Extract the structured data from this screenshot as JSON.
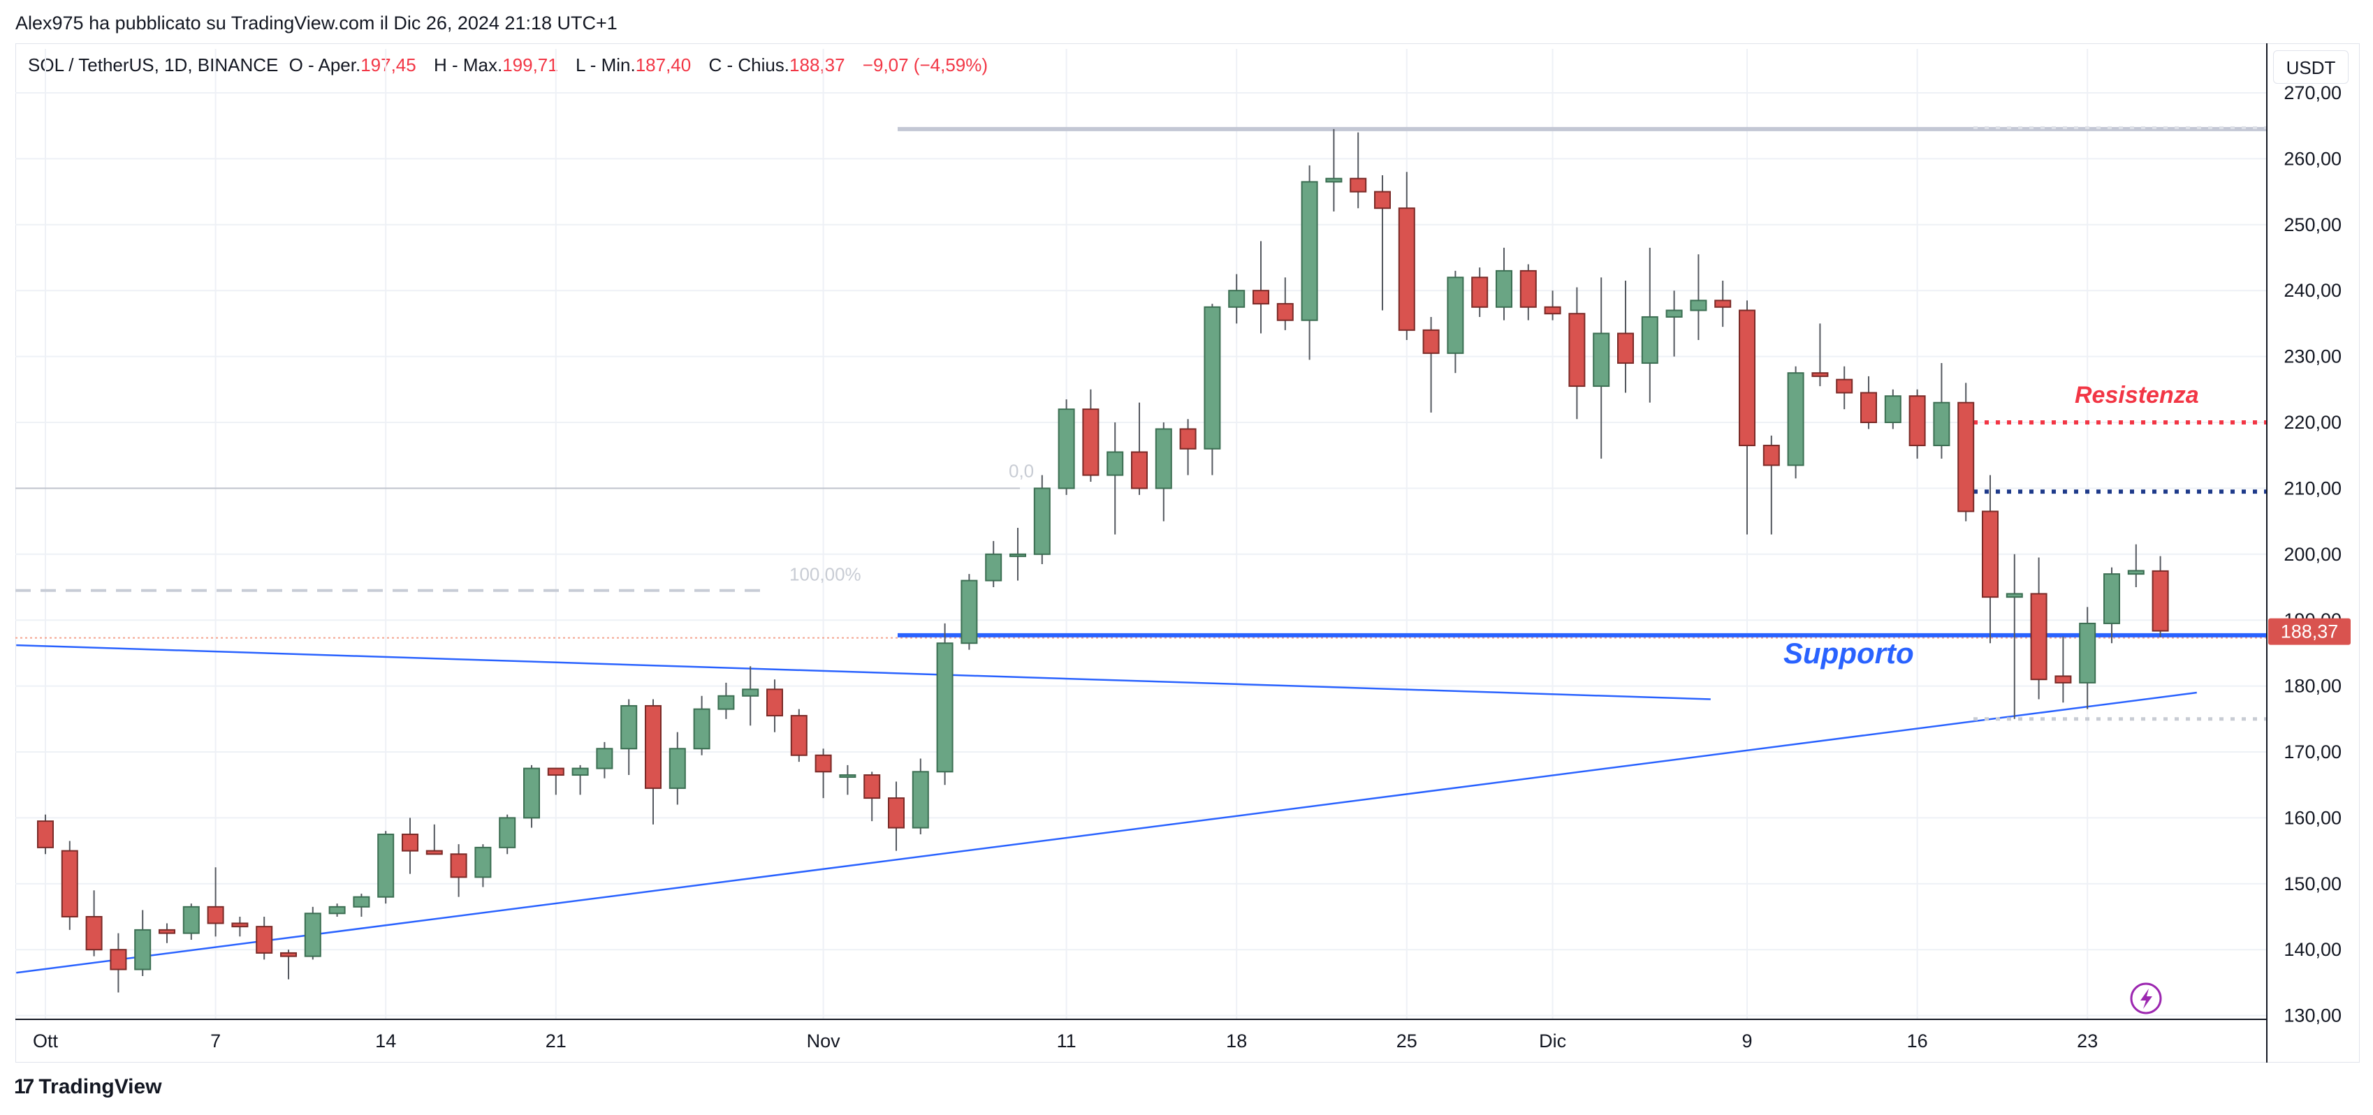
{
  "header": {
    "published_by": "Alex975 ha pubblicato su TradingView.com il Dic 26, 2024 21:18 UTC+1"
  },
  "legend": {
    "symbol": "SOL / TetherUS, 1D, BINANCE",
    "open_label": "O - Aper.",
    "open_value": "197,45",
    "high_label": "H - Max.",
    "high_value": "199,71",
    "low_label": "L - Min.",
    "low_value": "187,40",
    "close_label": "C - Chius.",
    "close_value": "188,37",
    "change": "−9,07 (−4,59%)"
  },
  "currency": "USDT",
  "last_price_label": "188,37",
  "brand": {
    "name": "TradingView",
    "mark": "17"
  },
  "colors": {
    "up": "#6aa584",
    "down": "#d9534f",
    "support": "#2962ff",
    "resistance": "#f23645",
    "blue_dotted": "#1e3a8a",
    "price_tag": "#d9534f"
  },
  "annotations": {
    "resistance_label": "Resistenza",
    "support_label": "Supporto",
    "fib_100": "100,00%",
    "fib_0": "0,0"
  },
  "chart_data": {
    "type": "candlestick",
    "title": "",
    "y_axis": {
      "range": [
        130,
        270
      ],
      "ticks": [
        "270,00",
        "260,00",
        "250,00",
        "240,00",
        "230,00",
        "220,00",
        "210,00",
        "200,00",
        "190,00",
        "180,00",
        "170,00",
        "160,00",
        "150,00",
        "140,00",
        "130,00"
      ]
    },
    "x_axis": {
      "start_date": "2024-09-30",
      "tick_labels": [
        {
          "label": "Ott",
          "day": 0
        },
        {
          "label": "7",
          "day": 7
        },
        {
          "label": "14",
          "day": 14
        },
        {
          "label": "21",
          "day": 21
        },
        {
          "label": "Nov",
          "day": 32
        },
        {
          "label": "11",
          "day": 42
        },
        {
          "label": "18",
          "day": 49
        },
        {
          "label": "25",
          "day": 56
        },
        {
          "label": "Dic",
          "day": 62
        },
        {
          "label": "9",
          "day": 70
        },
        {
          "label": "16",
          "day": 77
        },
        {
          "label": "23",
          "day": 84
        }
      ]
    },
    "candles": [
      {
        "o": 159.5,
        "h": 160.5,
        "l": 154.5,
        "c": 155.5
      },
      {
        "o": 155.0,
        "h": 156.5,
        "l": 143.0,
        "c": 145.0
      },
      {
        "o": 145.0,
        "h": 149.0,
        "l": 139.0,
        "c": 140.0
      },
      {
        "o": 140.0,
        "h": 142.5,
        "l": 133.5,
        "c": 137.0
      },
      {
        "o": 137.0,
        "h": 146.0,
        "l": 136.0,
        "c": 143.0
      },
      {
        "o": 143.0,
        "h": 144.0,
        "l": 141.0,
        "c": 142.5
      },
      {
        "o": 142.5,
        "h": 147.0,
        "l": 141.5,
        "c": 146.5
      },
      {
        "o": 146.5,
        "h": 152.5,
        "l": 142.0,
        "c": 144.0
      },
      {
        "o": 144.0,
        "h": 145.0,
        "l": 142.0,
        "c": 143.5
      },
      {
        "o": 143.5,
        "h": 145.0,
        "l": 138.5,
        "c": 139.5
      },
      {
        "o": 139.5,
        "h": 140.0,
        "l": 135.5,
        "c": 139.0
      },
      {
        "o": 139.0,
        "h": 146.5,
        "l": 138.5,
        "c": 145.5
      },
      {
        "o": 145.5,
        "h": 147.0,
        "l": 145.0,
        "c": 146.5
      },
      {
        "o": 146.5,
        "h": 148.5,
        "l": 145.0,
        "c": 148.0
      },
      {
        "o": 148.0,
        "h": 158.0,
        "l": 147.0,
        "c": 157.5
      },
      {
        "o": 157.5,
        "h": 160.0,
        "l": 151.5,
        "c": 155.0
      },
      {
        "o": 155.0,
        "h": 159.0,
        "l": 154.5,
        "c": 154.5
      },
      {
        "o": 154.5,
        "h": 156.0,
        "l": 148.0,
        "c": 151.0
      },
      {
        "o": 151.0,
        "h": 156.0,
        "l": 149.5,
        "c": 155.5
      },
      {
        "o": 155.5,
        "h": 160.5,
        "l": 154.5,
        "c": 160.0
      },
      {
        "o": 160.0,
        "h": 168.0,
        "l": 158.5,
        "c": 167.5
      },
      {
        "o": 167.5,
        "h": 167.5,
        "l": 163.5,
        "c": 166.5
      },
      {
        "o": 166.5,
        "h": 168.0,
        "l": 163.5,
        "c": 167.5
      },
      {
        "o": 167.5,
        "h": 171.5,
        "l": 166.0,
        "c": 170.5
      },
      {
        "o": 170.5,
        "h": 178.0,
        "l": 166.5,
        "c": 177.0
      },
      {
        "o": 177.0,
        "h": 178.0,
        "l": 159.0,
        "c": 164.5
      },
      {
        "o": 164.5,
        "h": 173.0,
        "l": 162.0,
        "c": 170.5
      },
      {
        "o": 170.5,
        "h": 178.5,
        "l": 169.5,
        "c": 176.5
      },
      {
        "o": 176.5,
        "h": 180.5,
        "l": 175.0,
        "c": 178.5
      },
      {
        "o": 178.5,
        "h": 183.0,
        "l": 174.0,
        "c": 179.5
      },
      {
        "o": 179.5,
        "h": 181.0,
        "l": 173.0,
        "c": 175.5
      },
      {
        "o": 175.5,
        "h": 176.5,
        "l": 168.5,
        "c": 169.5
      },
      {
        "o": 169.5,
        "h": 170.5,
        "l": 163.0,
        "c": 167.0
      },
      {
        "o": 166.5,
        "h": 168.0,
        "l": 163.5,
        "c": 166.5
      },
      {
        "o": 166.5,
        "h": 167.0,
        "l": 159.5,
        "c": 163.0
      },
      {
        "o": 163.0,
        "h": 165.5,
        "l": 155.0,
        "c": 158.5
      },
      {
        "o": 158.5,
        "h": 169.0,
        "l": 157.5,
        "c": 167.0
      },
      {
        "o": 167.0,
        "h": 189.5,
        "l": 165.0,
        "c": 186.5
      },
      {
        "o": 186.5,
        "h": 197.0,
        "l": 185.5,
        "c": 196.0
      },
      {
        "o": 196.0,
        "h": 202.0,
        "l": 195.0,
        "c": 200.0
      },
      {
        "o": 200.0,
        "h": 204.0,
        "l": 196.0,
        "c": 200.0
      },
      {
        "o": 200.0,
        "h": 212.0,
        "l": 198.5,
        "c": 210.0
      },
      {
        "o": 210.0,
        "h": 223.5,
        "l": 209.0,
        "c": 222.0
      },
      {
        "o": 222.0,
        "h": 225.0,
        "l": 211.0,
        "c": 212.0
      },
      {
        "o": 212.0,
        "h": 220.0,
        "l": 203.0,
        "c": 215.5
      },
      {
        "o": 215.5,
        "h": 223.0,
        "l": 209.0,
        "c": 210.0
      },
      {
        "o": 210.0,
        "h": 220.0,
        "l": 205.0,
        "c": 219.0
      },
      {
        "o": 219.0,
        "h": 220.5,
        "l": 212.0,
        "c": 216.0
      },
      {
        "o": 216.0,
        "h": 238.0,
        "l": 212.0,
        "c": 237.5
      },
      {
        "o": 237.5,
        "h": 242.5,
        "l": 235.0,
        "c": 240.0
      },
      {
        "o": 240.0,
        "h": 247.5,
        "l": 233.5,
        "c": 238.0
      },
      {
        "o": 238.0,
        "h": 242.0,
        "l": 234.0,
        "c": 235.5
      },
      {
        "o": 235.5,
        "h": 259.0,
        "l": 229.5,
        "c": 256.5
      },
      {
        "o": 256.5,
        "h": 264.5,
        "l": 252.0,
        "c": 257.0
      },
      {
        "o": 257.0,
        "h": 264.0,
        "l": 252.5,
        "c": 255.0
      },
      {
        "o": 255.0,
        "h": 257.5,
        "l": 237.0,
        "c": 252.5
      },
      {
        "o": 252.5,
        "h": 258.0,
        "l": 232.5,
        "c": 234.0
      },
      {
        "o": 234.0,
        "h": 236.0,
        "l": 221.5,
        "c": 230.5
      },
      {
        "o": 230.5,
        "h": 243.0,
        "l": 227.5,
        "c": 242.0
      },
      {
        "o": 242.0,
        "h": 243.5,
        "l": 236.0,
        "c": 237.5
      },
      {
        "o": 237.5,
        "h": 246.5,
        "l": 235.5,
        "c": 243.0
      },
      {
        "o": 243.0,
        "h": 244.0,
        "l": 235.5,
        "c": 237.5
      },
      {
        "o": 237.5,
        "h": 240.0,
        "l": 235.5,
        "c": 236.5
      },
      {
        "o": 236.5,
        "h": 240.5,
        "l": 220.5,
        "c": 225.5
      },
      {
        "o": 225.5,
        "h": 242.0,
        "l": 214.5,
        "c": 233.5
      },
      {
        "o": 233.5,
        "h": 241.5,
        "l": 224.5,
        "c": 229.0
      },
      {
        "o": 229.0,
        "h": 246.5,
        "l": 223.0,
        "c": 236.0
      },
      {
        "o": 236.0,
        "h": 240.0,
        "l": 230.0,
        "c": 237.0
      },
      {
        "o": 237.0,
        "h": 245.5,
        "l": 232.5,
        "c": 238.5
      },
      {
        "o": 238.5,
        "h": 241.5,
        "l": 234.5,
        "c": 237.5
      },
      {
        "o": 237.0,
        "h": 238.5,
        "l": 203.0,
        "c": 216.5
      },
      {
        "o": 216.5,
        "h": 218.0,
        "l": 203.0,
        "c": 213.5
      },
      {
        "o": 213.5,
        "h": 228.5,
        "l": 211.5,
        "c": 227.5
      },
      {
        "o": 227.5,
        "h": 235.0,
        "l": 225.5,
        "c": 227.0
      },
      {
        "o": 226.5,
        "h": 228.5,
        "l": 222.0,
        "c": 224.5
      },
      {
        "o": 224.5,
        "h": 227.0,
        "l": 219.0,
        "c": 220.0
      },
      {
        "o": 220.0,
        "h": 225.0,
        "l": 219.0,
        "c": 224.0
      },
      {
        "o": 224.0,
        "h": 225.0,
        "l": 214.5,
        "c": 216.5
      },
      {
        "o": 216.5,
        "h": 229.0,
        "l": 214.5,
        "c": 223.0
      },
      {
        "o": 223.0,
        "h": 226.0,
        "l": 205.0,
        "c": 206.5
      },
      {
        "o": 206.5,
        "h": 212.0,
        "l": 186.5,
        "c": 193.5
      },
      {
        "o": 193.5,
        "h": 200.0,
        "l": 175.0,
        "c": 194.0
      },
      {
        "o": 194.0,
        "h": 199.5,
        "l": 178.0,
        "c": 181.0
      },
      {
        "o": 181.5,
        "h": 187.5,
        "l": 177.5,
        "c": 180.5
      },
      {
        "o": 180.5,
        "h": 192.0,
        "l": 176.5,
        "c": 189.5
      },
      {
        "o": 189.5,
        "h": 198.0,
        "l": 186.5,
        "c": 197.0
      },
      {
        "o": 197.0,
        "h": 201.5,
        "l": 195.0,
        "c": 197.5
      },
      {
        "o": 197.45,
        "h": 199.71,
        "l": 187.4,
        "c": 188.37
      }
    ],
    "drawings": {
      "support_level": 187.7,
      "resistance_level": 220.0,
      "blue_dotted_level": 209.5,
      "top_level": 264.5,
      "fib_100_level": 194.5,
      "fib_0_level": 210.0,
      "low_dotted_level": 175.0,
      "prev_close_dotted_level": 188.37,
      "trendline_up": {
        "from": {
          "day": -1.2,
          "price": 136.5
        },
        "to": {
          "day": 88.5,
          "price": 179.0
        }
      },
      "trendline_down": {
        "from": {
          "day": -1.2,
          "price": 186.2
        },
        "to": {
          "day": 68.5,
          "price": 178.0
        }
      }
    }
  }
}
